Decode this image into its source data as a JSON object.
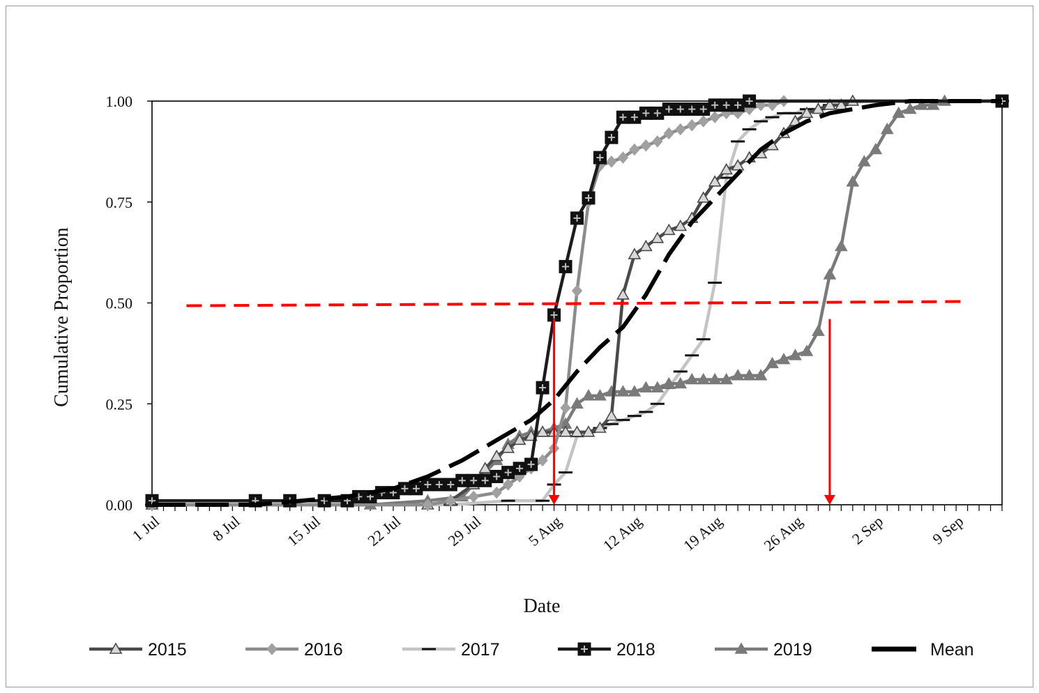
{
  "chart_data": {
    "type": "line",
    "xlabel": "Date",
    "ylabel": "Cumulative Proportion",
    "x_range": [
      "2019-07-01",
      "2019-09-13"
    ],
    "ylim": [
      0,
      1
    ],
    "y_ticks": [
      "0.00",
      "0.25",
      "0.50",
      "0.75",
      "1.00"
    ],
    "x_ticks": [
      {
        "date": "2019-07-01",
        "label": "1 Jul"
      },
      {
        "date": "2019-07-08",
        "label": "8 Jul"
      },
      {
        "date": "2019-07-15",
        "label": "15 Jul"
      },
      {
        "date": "2019-07-22",
        "label": "22 Jul"
      },
      {
        "date": "2019-07-29",
        "label": "29 Jul"
      },
      {
        "date": "2019-08-05",
        "label": "5 Aug"
      },
      {
        "date": "2019-08-12",
        "label": "12 Aug"
      },
      {
        "date": "2019-08-19",
        "label": "19 Aug"
      },
      {
        "date": "2019-08-26",
        "label": "26 Aug"
      },
      {
        "date": "2019-09-02",
        "label": "2 Sep"
      },
      {
        "date": "2019-09-09",
        "label": "9 Sep"
      }
    ],
    "grid": false,
    "legend_position": "bottom",
    "series": [
      {
        "name": "2015",
        "color": "#4a4a4a",
        "marker": "triangle-open",
        "points": [
          [
            "2019-07-01",
            0
          ],
          [
            "2019-07-25",
            0
          ],
          [
            "2019-07-27",
            0.01
          ],
          [
            "2019-07-29",
            0.05
          ],
          [
            "2019-07-30",
            0.09
          ],
          [
            "2019-07-31",
            0.12
          ],
          [
            "2019-08-01",
            0.14
          ],
          [
            "2019-08-02",
            0.16
          ],
          [
            "2019-08-03",
            0.17
          ],
          [
            "2019-08-04",
            0.18
          ],
          [
            "2019-08-05",
            0.18
          ],
          [
            "2019-08-06",
            0.18
          ],
          [
            "2019-08-07",
            0.18
          ],
          [
            "2019-08-08",
            0.18
          ],
          [
            "2019-08-09",
            0.19
          ],
          [
            "2019-08-10",
            0.22
          ],
          [
            "2019-08-11",
            0.52
          ],
          [
            "2019-08-12",
            0.62
          ],
          [
            "2019-08-13",
            0.64
          ],
          [
            "2019-08-14",
            0.66
          ],
          [
            "2019-08-15",
            0.68
          ],
          [
            "2019-08-16",
            0.69
          ],
          [
            "2019-08-17",
            0.71
          ],
          [
            "2019-08-18",
            0.76
          ],
          [
            "2019-08-19",
            0.8
          ],
          [
            "2019-08-20",
            0.83
          ],
          [
            "2019-08-21",
            0.84
          ],
          [
            "2019-08-22",
            0.86
          ],
          [
            "2019-08-23",
            0.87
          ],
          [
            "2019-08-24",
            0.89
          ],
          [
            "2019-08-25",
            0.92
          ],
          [
            "2019-08-26",
            0.95
          ],
          [
            "2019-08-27",
            0.97
          ],
          [
            "2019-08-28",
            0.98
          ],
          [
            "2019-08-29",
            0.99
          ],
          [
            "2019-08-30",
            0.99
          ],
          [
            "2019-08-31",
            1
          ],
          [
            "2019-09-13",
            1
          ]
        ]
      },
      {
        "name": "2016",
        "color": "#8c8c8c",
        "marker": "diamond",
        "points": [
          [
            "2019-07-01",
            0
          ],
          [
            "2019-07-25",
            0
          ],
          [
            "2019-07-27",
            0.01
          ],
          [
            "2019-07-29",
            0.02
          ],
          [
            "2019-07-31",
            0.03
          ],
          [
            "2019-08-01",
            0.05
          ],
          [
            "2019-08-02",
            0.07
          ],
          [
            "2019-08-03",
            0.09
          ],
          [
            "2019-08-04",
            0.11
          ],
          [
            "2019-08-05",
            0.14
          ],
          [
            "2019-08-06",
            0.24
          ],
          [
            "2019-08-07",
            0.53
          ],
          [
            "2019-08-08",
            0.75
          ],
          [
            "2019-08-09",
            0.84
          ],
          [
            "2019-08-10",
            0.85
          ],
          [
            "2019-08-11",
            0.86
          ],
          [
            "2019-08-12",
            0.88
          ],
          [
            "2019-08-13",
            0.89
          ],
          [
            "2019-08-14",
            0.9
          ],
          [
            "2019-08-15",
            0.92
          ],
          [
            "2019-08-16",
            0.93
          ],
          [
            "2019-08-17",
            0.94
          ],
          [
            "2019-08-18",
            0.95
          ],
          [
            "2019-08-19",
            0.96
          ],
          [
            "2019-08-20",
            0.97
          ],
          [
            "2019-08-21",
            0.97
          ],
          [
            "2019-08-22",
            0.98
          ],
          [
            "2019-08-23",
            0.99
          ],
          [
            "2019-08-24",
            0.99
          ],
          [
            "2019-08-25",
            1
          ],
          [
            "2019-09-13",
            1
          ]
        ]
      },
      {
        "name": "2017",
        "color": "#c4c4c4",
        "marker": "dash",
        "points": [
          [
            "2019-07-01",
            0
          ],
          [
            "2019-07-27",
            0
          ],
          [
            "2019-08-01",
            0.01
          ],
          [
            "2019-08-04",
            0.01
          ],
          [
            "2019-08-05",
            0.05
          ],
          [
            "2019-08-06",
            0.08
          ],
          [
            "2019-08-07",
            0.17
          ],
          [
            "2019-08-08",
            0.18
          ],
          [
            "2019-08-09",
            0.19
          ],
          [
            "2019-08-10",
            0.2
          ],
          [
            "2019-08-11",
            0.21
          ],
          [
            "2019-08-12",
            0.22
          ],
          [
            "2019-08-13",
            0.23
          ],
          [
            "2019-08-14",
            0.25
          ],
          [
            "2019-08-15",
            0.29
          ],
          [
            "2019-08-16",
            0.33
          ],
          [
            "2019-08-17",
            0.37
          ],
          [
            "2019-08-18",
            0.41
          ],
          [
            "2019-08-19",
            0.55
          ],
          [
            "2019-08-20",
            0.81
          ],
          [
            "2019-08-21",
            0.9
          ],
          [
            "2019-08-22",
            0.93
          ],
          [
            "2019-08-23",
            0.95
          ],
          [
            "2019-08-24",
            0.96
          ],
          [
            "2019-08-25",
            0.97
          ],
          [
            "2019-08-26",
            0.97
          ],
          [
            "2019-08-27",
            0.98
          ],
          [
            "2019-08-28",
            0.98
          ],
          [
            "2019-08-29",
            0.99
          ],
          [
            "2019-08-30",
            0.99
          ],
          [
            "2019-09-01",
            1
          ],
          [
            "2019-09-13",
            1
          ]
        ]
      },
      {
        "name": "2018",
        "color": "#1c1c1c",
        "marker": "square-cross",
        "points": [
          [
            "2019-07-01",
            0.01
          ],
          [
            "2019-07-10",
            0.01
          ],
          [
            "2019-07-13",
            0.01
          ],
          [
            "2019-07-16",
            0.01
          ],
          [
            "2019-07-18",
            0.01
          ],
          [
            "2019-07-19",
            0.02
          ],
          [
            "2019-07-20",
            0.02
          ],
          [
            "2019-07-21",
            0.03
          ],
          [
            "2019-07-22",
            0.03
          ],
          [
            "2019-07-23",
            0.04
          ],
          [
            "2019-07-24",
            0.04
          ],
          [
            "2019-07-25",
            0.05
          ],
          [
            "2019-07-26",
            0.05
          ],
          [
            "2019-07-27",
            0.05
          ],
          [
            "2019-07-28",
            0.06
          ],
          [
            "2019-07-29",
            0.06
          ],
          [
            "2019-07-30",
            0.06
          ],
          [
            "2019-07-31",
            0.07
          ],
          [
            "2019-08-01",
            0.08
          ],
          [
            "2019-08-02",
            0.09
          ],
          [
            "2019-08-03",
            0.1
          ],
          [
            "2019-08-04",
            0.29
          ],
          [
            "2019-08-05",
            0.47
          ],
          [
            "2019-08-06",
            0.59
          ],
          [
            "2019-08-07",
            0.71
          ],
          [
            "2019-08-08",
            0.76
          ],
          [
            "2019-08-09",
            0.86
          ],
          [
            "2019-08-10",
            0.91
          ],
          [
            "2019-08-11",
            0.96
          ],
          [
            "2019-08-12",
            0.96
          ],
          [
            "2019-08-13",
            0.97
          ],
          [
            "2019-08-14",
            0.97
          ],
          [
            "2019-08-15",
            0.98
          ],
          [
            "2019-08-16",
            0.98
          ],
          [
            "2019-08-17",
            0.98
          ],
          [
            "2019-08-18",
            0.98
          ],
          [
            "2019-08-19",
            0.99
          ],
          [
            "2019-08-20",
            0.99
          ],
          [
            "2019-08-21",
            0.99
          ],
          [
            "2019-08-22",
            1
          ],
          [
            "2019-09-13",
            1
          ]
        ]
      },
      {
        "name": "2019",
        "color": "#7a7a7a",
        "marker": "triangle",
        "points": [
          [
            "2019-07-01",
            0
          ],
          [
            "2019-07-20",
            0
          ],
          [
            "2019-07-25",
            0.01
          ],
          [
            "2019-07-28",
            0.02
          ],
          [
            "2019-07-29",
            0.05
          ],
          [
            "2019-07-30",
            0.08
          ],
          [
            "2019-07-31",
            0.11
          ],
          [
            "2019-08-01",
            0.15
          ],
          [
            "2019-08-02",
            0.17
          ],
          [
            "2019-08-03",
            0.18
          ],
          [
            "2019-08-04",
            0.18
          ],
          [
            "2019-08-05",
            0.19
          ],
          [
            "2019-08-06",
            0.2
          ],
          [
            "2019-08-07",
            0.25
          ],
          [
            "2019-08-08",
            0.27
          ],
          [
            "2019-08-09",
            0.27
          ],
          [
            "2019-08-10",
            0.28
          ],
          [
            "2019-08-11",
            0.28
          ],
          [
            "2019-08-12",
            0.28
          ],
          [
            "2019-08-13",
            0.29
          ],
          [
            "2019-08-14",
            0.29
          ],
          [
            "2019-08-15",
            0.3
          ],
          [
            "2019-08-16",
            0.3
          ],
          [
            "2019-08-17",
            0.31
          ],
          [
            "2019-08-18",
            0.31
          ],
          [
            "2019-08-19",
            0.31
          ],
          [
            "2019-08-20",
            0.31
          ],
          [
            "2019-08-21",
            0.32
          ],
          [
            "2019-08-22",
            0.32
          ],
          [
            "2019-08-23",
            0.32
          ],
          [
            "2019-08-24",
            0.35
          ],
          [
            "2019-08-25",
            0.36
          ],
          [
            "2019-08-26",
            0.37
          ],
          [
            "2019-08-27",
            0.38
          ],
          [
            "2019-08-28",
            0.43
          ],
          [
            "2019-08-29",
            0.57
          ],
          [
            "2019-08-30",
            0.64
          ],
          [
            "2019-08-31",
            0.8
          ],
          [
            "2019-09-01",
            0.85
          ],
          [
            "2019-09-02",
            0.88
          ],
          [
            "2019-09-03",
            0.93
          ],
          [
            "2019-09-04",
            0.97
          ],
          [
            "2019-09-05",
            0.98
          ],
          [
            "2019-09-06",
            0.99
          ],
          [
            "2019-09-07",
            0.99
          ],
          [
            "2019-09-08",
            1
          ],
          [
            "2019-09-13",
            1
          ]
        ]
      },
      {
        "name": "Mean",
        "color": "#000000",
        "marker": "none",
        "dashed": true,
        "points": [
          [
            "2019-07-01",
            0
          ],
          [
            "2019-07-10",
            0
          ],
          [
            "2019-07-14",
            0.01
          ],
          [
            "2019-07-18",
            0.02
          ],
          [
            "2019-07-22",
            0.04
          ],
          [
            "2019-07-25",
            0.07
          ],
          [
            "2019-07-28",
            0.11
          ],
          [
            "2019-07-31",
            0.16
          ],
          [
            "2019-08-03",
            0.21
          ],
          [
            "2019-08-05",
            0.26
          ],
          [
            "2019-08-07",
            0.33
          ],
          [
            "2019-08-09",
            0.39
          ],
          [
            "2019-08-11",
            0.44
          ],
          [
            "2019-08-13",
            0.52
          ],
          [
            "2019-08-15",
            0.62
          ],
          [
            "2019-08-17",
            0.7
          ],
          [
            "2019-08-19",
            0.76
          ],
          [
            "2019-08-21",
            0.82
          ],
          [
            "2019-08-23",
            0.88
          ],
          [
            "2019-08-25",
            0.92
          ],
          [
            "2019-08-27",
            0.95
          ],
          [
            "2019-08-29",
            0.97
          ],
          [
            "2019-08-31",
            0.98
          ],
          [
            "2019-09-02",
            0.99
          ],
          [
            "2019-09-05",
            1
          ],
          [
            "2019-09-13",
            1
          ]
        ]
      }
    ],
    "reference_line": {
      "y": 0.5,
      "x_from": "2019-07-04",
      "x_to": "2019-09-10",
      "color": "#ff0000"
    },
    "arrows": [
      {
        "x": "2019-08-05",
        "y_from": 0.46,
        "y_to": 0,
        "color": "#ff0000"
      },
      {
        "x": "2019-08-29",
        "y_from": 0.46,
        "y_to": 0,
        "color": "#ff0000"
      }
    ]
  }
}
